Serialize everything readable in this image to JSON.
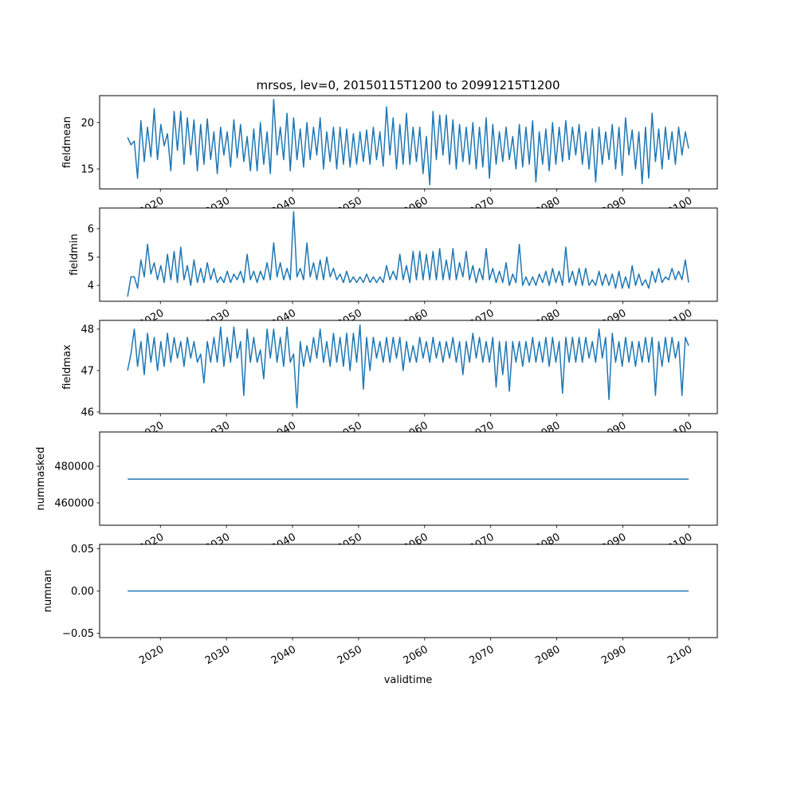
{
  "chart_data": {
    "type": "line",
    "title": "mrsos, lev=0, 20150115T1200 to 20991215T1200",
    "xlabel": "validtime",
    "x_start": 2015.04,
    "x_end": 2099.96,
    "xlim": [
      2010.8,
      2104.3
    ],
    "x_ticks": [
      2020,
      2030,
      2040,
      2050,
      2060,
      2070,
      2080,
      2090,
      2100
    ],
    "x_tick_labels": [
      "2020",
      "2030",
      "2040",
      "2050",
      "2060",
      "2070",
      "2080",
      "2090",
      "2100"
    ],
    "line_color": "#1f77b4",
    "panels": [
      {
        "ylabel": "fieldmean",
        "ylim": [
          12.85,
          22.9
        ],
        "y_ticks": [
          15,
          20
        ],
        "y_tick_labels": [
          "15",
          "20"
        ],
        "values": [
          18.4,
          17.6,
          18.0,
          14.0,
          20.2,
          15.8,
          19.5,
          16.3,
          21.5,
          16.0,
          19.8,
          17.5,
          18.8,
          14.8,
          21.2,
          17.0,
          21.2,
          15.5,
          20.5,
          16.5,
          20.3,
          14.8,
          19.8,
          15.5,
          20.4,
          16.0,
          19.0,
          14.5,
          19.5,
          16.5,
          19.0,
          15.2,
          20.3,
          16.2,
          19.8,
          15.8,
          18.5,
          14.8,
          19.3,
          14.8,
          20.0,
          15.5,
          19.0,
          14.5,
          22.5,
          16.5,
          19.5,
          16.0,
          21.0,
          14.8,
          20.5,
          16.0,
          19.3,
          15.2,
          20.0,
          16.0,
          19.5,
          16.5,
          20.5,
          15.0,
          19.0,
          15.8,
          19.5,
          15.0,
          19.5,
          15.5,
          19.3,
          15.2,
          18.8,
          15.5,
          19.0,
          15.8,
          19.2,
          15.5,
          19.5,
          16.0,
          19.0,
          15.3,
          21.7,
          16.5,
          20.5,
          15.0,
          19.8,
          15.5,
          21.0,
          15.5,
          19.5,
          15.8,
          19.5,
          14.5,
          18.5,
          13.3,
          21.2,
          16.0,
          20.8,
          16.5,
          20.8,
          15.5,
          20.3,
          15.0,
          19.8,
          15.8,
          19.5,
          15.5,
          20.0,
          15.0,
          19.5,
          15.2,
          20.5,
          14.0,
          19.8,
          15.5,
          19.0,
          15.8,
          19.5,
          16.0,
          18.5,
          15.0,
          19.8,
          15.2,
          19.5,
          15.5,
          20.2,
          13.6,
          19.0,
          15.5,
          19.3,
          14.8,
          20.0,
          15.5,
          19.5,
          15.8,
          20.2,
          16.0,
          19.5,
          16.5,
          19.8,
          15.5,
          19.0,
          15.0,
          19.3,
          13.6,
          19.5,
          15.5,
          19.0,
          16.0,
          19.8,
          15.0,
          19.5,
          14.3,
          20.5,
          16.5,
          19.2,
          15.0,
          19.0,
          13.4,
          19.5,
          14.0,
          21.0,
          15.8,
          19.3,
          15.0,
          19.5,
          16.0,
          19.0,
          15.5,
          19.5,
          16.5,
          19.0,
          17.2
        ]
      },
      {
        "ylabel": "fieldmin",
        "ylim": [
          3.44,
          6.73
        ],
        "y_ticks": [
          4,
          5,
          6
        ],
        "y_tick_labels": [
          "4",
          "5",
          "6"
        ],
        "values": [
          3.6,
          4.3,
          4.3,
          3.9,
          4.9,
          4.3,
          5.45,
          4.4,
          4.8,
          4.2,
          4.7,
          4.1,
          5.1,
          4.2,
          5.2,
          4.1,
          5.35,
          4.2,
          4.7,
          4.0,
          4.9,
          4.1,
          4.6,
          4.1,
          4.8,
          4.2,
          4.6,
          4.1,
          4.3,
          4.1,
          4.5,
          4.1,
          4.4,
          4.2,
          4.5,
          4.1,
          5.1,
          4.2,
          4.5,
          4.1,
          4.5,
          4.2,
          4.8,
          4.2,
          5.5,
          4.3,
          4.8,
          4.2,
          4.6,
          4.2,
          6.6,
          4.3,
          4.6,
          4.2,
          5.5,
          4.3,
          4.8,
          4.2,
          4.9,
          4.2,
          5.0,
          4.3,
          4.6,
          4.2,
          4.4,
          4.1,
          4.5,
          4.1,
          4.3,
          4.1,
          4.3,
          4.1,
          4.4,
          4.1,
          4.3,
          4.1,
          4.3,
          4.1,
          4.7,
          4.2,
          4.5,
          4.2,
          5.1,
          4.2,
          4.7,
          4.1,
          5.2,
          4.2,
          5.2,
          4.2,
          5.1,
          4.2,
          5.2,
          4.2,
          5.3,
          4.2,
          4.9,
          4.2,
          5.3,
          4.2,
          4.8,
          4.3,
          5.2,
          4.2,
          4.7,
          4.1,
          4.6,
          4.2,
          5.3,
          4.2,
          4.6,
          4.1,
          4.5,
          4.1,
          4.8,
          4.0,
          4.4,
          4.1,
          5.45,
          4.0,
          4.3,
          4.0,
          4.3,
          4.0,
          4.4,
          4.1,
          4.5,
          4.0,
          4.6,
          4.1,
          4.5,
          4.0,
          5.35,
          4.1,
          4.5,
          4.0,
          4.6,
          4.0,
          4.6,
          4.0,
          4.2,
          4.0,
          4.5,
          4.0,
          4.4,
          4.0,
          4.4,
          3.9,
          4.5,
          3.9,
          4.3,
          3.9,
          4.7,
          4.0,
          4.4,
          4.0,
          4.2,
          3.9,
          4.5,
          4.1,
          4.6,
          4.1,
          4.3,
          4.2,
          4.6,
          4.2,
          4.5,
          4.2,
          4.9,
          4.1
        ]
      },
      {
        "ylabel": "fieldmax",
        "ylim": [
          45.96,
          48.21
        ],
        "y_ticks": [
          46,
          47,
          48
        ],
        "y_tick_labels": [
          "46",
          "47",
          "48"
        ],
        "values": [
          47.0,
          47.4,
          48.0,
          47.1,
          47.7,
          46.9,
          47.9,
          47.2,
          47.8,
          47.0,
          47.7,
          47.1,
          47.9,
          47.2,
          47.8,
          47.3,
          47.7,
          47.1,
          47.8,
          47.3,
          47.7,
          47.2,
          47.4,
          46.7,
          47.7,
          47.2,
          47.8,
          47.2,
          48.05,
          47.1,
          47.8,
          47.2,
          48.05,
          47.3,
          47.7,
          46.4,
          48.0,
          47.2,
          47.8,
          47.2,
          47.5,
          46.8,
          48.0,
          47.3,
          48.0,
          47.2,
          47.8,
          47.1,
          48.05,
          47.2,
          47.4,
          46.1,
          47.7,
          47.1,
          47.6,
          47.2,
          47.8,
          47.3,
          48.0,
          47.2,
          47.7,
          47.1,
          47.9,
          47.2,
          47.8,
          47.1,
          47.9,
          47.0,
          47.9,
          47.2,
          48.1,
          46.55,
          47.8,
          47.0,
          47.8,
          47.3,
          47.7,
          47.2,
          47.8,
          47.2,
          47.8,
          47.3,
          47.8,
          47.0,
          47.7,
          47.2,
          47.6,
          47.2,
          47.8,
          47.3,
          47.7,
          47.2,
          47.8,
          47.3,
          47.7,
          47.2,
          47.7,
          47.3,
          47.8,
          47.2,
          47.7,
          46.9,
          47.7,
          47.2,
          47.9,
          47.3,
          47.8,
          47.2,
          47.7,
          47.2,
          47.8,
          46.6,
          47.7,
          46.9,
          47.7,
          46.5,
          47.7,
          47.2,
          47.7,
          47.1,
          47.7,
          47.2,
          47.8,
          47.2,
          47.7,
          47.2,
          47.8,
          47.1,
          47.8,
          47.2,
          47.7,
          46.45,
          47.8,
          47.2,
          47.8,
          47.2,
          47.8,
          47.2,
          47.8,
          47.3,
          47.7,
          47.2,
          48.0,
          47.3,
          47.8,
          46.3,
          47.9,
          47.2,
          47.7,
          47.1,
          47.8,
          47.2,
          47.7,
          47.1,
          47.7,
          47.2,
          47.8,
          47.2,
          47.8,
          46.4,
          47.7,
          47.1,
          47.8,
          47.2,
          47.8,
          47.3,
          47.7,
          46.4,
          47.8,
          47.6
        ]
      },
      {
        "ylabel": "nummasked",
        "ylim": [
          447800,
          498700
        ],
        "y_ticks": [
          460000,
          480000
        ],
        "y_tick_labels": [
          "460000",
          "480000"
        ],
        "constant": 473000
      },
      {
        "ylabel": "numnan",
        "ylim": [
          -0.055,
          0.055
        ],
        "y_ticks": [
          -0.05,
          0.0,
          0.05
        ],
        "y_tick_labels": [
          "−0.05",
          "0.00",
          "0.05"
        ],
        "constant": 0.0
      }
    ]
  }
}
